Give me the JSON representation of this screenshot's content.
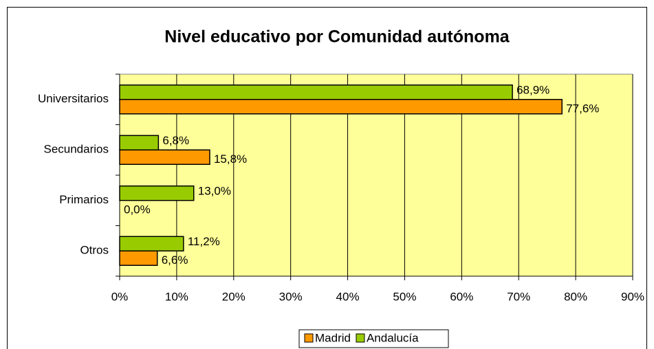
{
  "chart_data": {
    "type": "barh",
    "title": "Nivel educativo por Comunidad autónoma",
    "categories": [
      "Universitarios",
      "Secundarios",
      "Primarios",
      "Otros"
    ],
    "series": [
      {
        "name": "Madrid",
        "color": "#ff9900",
        "values": [
          77.6,
          15.8,
          0.0,
          6.6
        ],
        "value_labels": [
          "77,6%",
          "15,8%",
          "0,0%",
          "6,6%"
        ]
      },
      {
        "name": "Andalucía",
        "color": "#99cc00",
        "values": [
          68.9,
          6.8,
          13.0,
          11.2
        ],
        "value_labels": [
          "68,9%",
          "6,8%",
          "13,0%",
          "11,2%"
        ]
      }
    ],
    "xlim": [
      0,
      90
    ],
    "xticks": [
      {
        "value": 0,
        "label": "0%"
      },
      {
        "value": 10,
        "label": "10%"
      },
      {
        "value": 20,
        "label": "20%"
      },
      {
        "value": 30,
        "label": "30%"
      },
      {
        "value": 40,
        "label": "40%"
      },
      {
        "value": 50,
        "label": "50%"
      },
      {
        "value": 60,
        "label": "60%"
      },
      {
        "value": 70,
        "label": "70%"
      },
      {
        "value": 80,
        "label": "80%"
      },
      {
        "value": 90,
        "label": "90%"
      }
    ],
    "grid": true,
    "plot_background": "#ffff99",
    "legend": "bottom"
  }
}
